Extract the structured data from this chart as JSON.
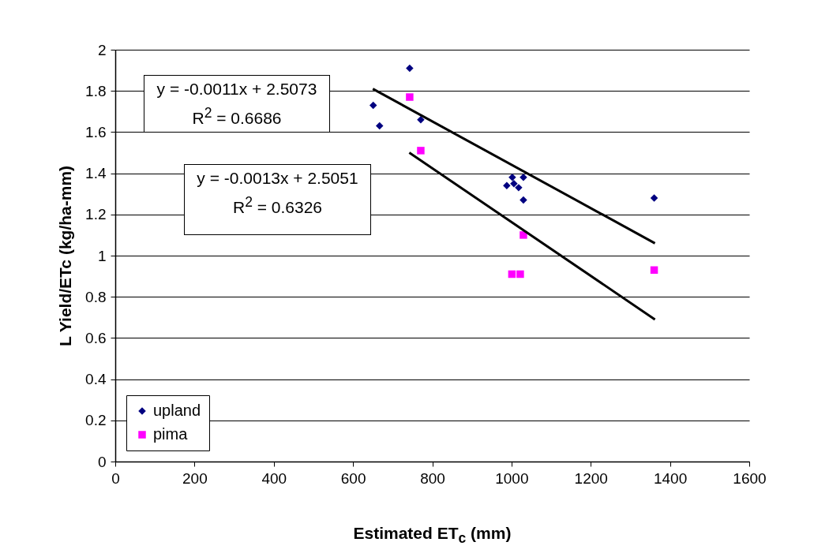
{
  "chart_data": {
    "type": "scatter",
    "xlabel": "Estimated ET$_{c}$ (mm)",
    "ylabel": "L Yield/ETc (kg/ha-mm)",
    "xlim": [
      0,
      1600
    ],
    "xticks": [
      0,
      200,
      400,
      600,
      800,
      1000,
      1200,
      1400,
      1600
    ],
    "ylim": [
      0,
      2
    ],
    "yticks": [
      0,
      0.2,
      0.4,
      0.6,
      0.8,
      1,
      1.2,
      1.4,
      1.6,
      1.8,
      2
    ],
    "grid": "y",
    "legend": "bottom left",
    "annotations": [
      "y = -0.0011x + 2.5073",
      "R$^{2}$ = 0.6686",
      "y = -0.0013x + 2.5051",
      "R$^{2}$ = 0.6326"
    ],
    "series": [
      {
        "name": "upland",
        "color": "#000080",
        "marker": "diamond",
        "x": [
          651,
          667,
          743,
          771,
          988,
          1002,
          1006,
          1018,
          1030,
          1030,
          1360
        ],
        "values": [
          1.73,
          1.63,
          1.91,
          1.66,
          1.34,
          1.38,
          1.35,
          1.33,
          1.38,
          1.27,
          1.28
        ]
      },
      {
        "name": "pima",
        "color": "#ff00ff",
        "marker": "square",
        "x": [
          743,
          771,
          1001,
          1022,
          1030,
          1360
        ],
        "values": [
          1.77,
          1.51,
          0.91,
          0.91,
          1.1,
          0.93
        ]
      },
      {
        "type": "line",
        "color": "#000000",
        "x": [
          650,
          1362
        ],
        "values": [
          1.81,
          1.06
        ]
      },
      {
        "type": "line",
        "color": "#000000",
        "x": [
          742,
          1362
        ],
        "values": [
          1.5,
          0.69
        ]
      }
    ]
  }
}
